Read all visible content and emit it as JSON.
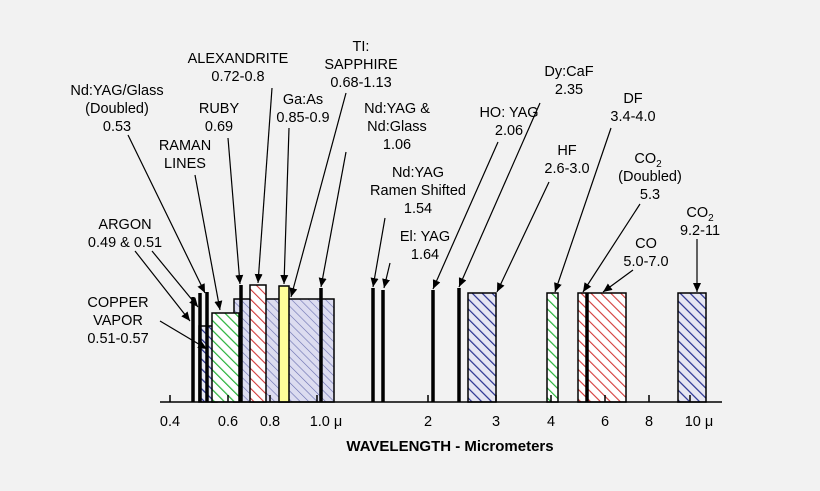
{
  "colors": {
    "background": "#f2f2f2",
    "blue_hatch": "#27308f",
    "green_hatch": "#28b23a",
    "red_hatch": "#d23a3a",
    "yellow_fill": "#ffff99",
    "line": "#000000"
  },
  "axis": {
    "title": "WAVELENGTH - Micrometers",
    "scale": "log",
    "ticks": [
      "0.4",
      "0.6",
      "0.8",
      "1.0 μ",
      "2",
      "3",
      "4",
      "6",
      "8",
      "10 μ"
    ]
  },
  "labels": {
    "copper_vapor": [
      "COPPER",
      "VAPOR",
      "0.51-0.57"
    ],
    "argon": [
      "ARGON",
      "0.49 & 0.51"
    ],
    "ndyag_glass_doubled": [
      "Nd:YAG/Glass",
      "(Doubled)",
      "0.53"
    ],
    "raman": [
      "RAMAN",
      "LINES"
    ],
    "ruby": [
      "RUBY",
      "0.69"
    ],
    "alexandrite": [
      "ALEXANDRITE",
      "0.72-0.8"
    ],
    "gaas": [
      "Ga:As",
      "0.85-0.9"
    ],
    "ti_sapphire": [
      "TI:",
      "SAPPHIRE",
      "0.68-1.13"
    ],
    "ndyag_ndglass": [
      "Nd:YAG &",
      "Nd:Glass",
      "1.06"
    ],
    "ndyag_raman": [
      "Nd:YAG",
      "Ramen Shifted",
      "1.54"
    ],
    "er_yag": [
      "El: YAG",
      "1.64"
    ],
    "ho_yag": [
      "HO: YAG",
      "2.06"
    ],
    "dy_caf": [
      "Dy:CaF",
      "2.35"
    ],
    "hf": [
      "HF",
      "2.6-3.0"
    ],
    "df": [
      "DF",
      "3.4-4.0"
    ],
    "co2_doubled": [
      "CO",
      "2",
      "(Doubled)",
      "5.3"
    ],
    "co": [
      "CO",
      "5.0-7.0"
    ],
    "co2": [
      "CO",
      "2",
      "9.2-11"
    ]
  }
}
